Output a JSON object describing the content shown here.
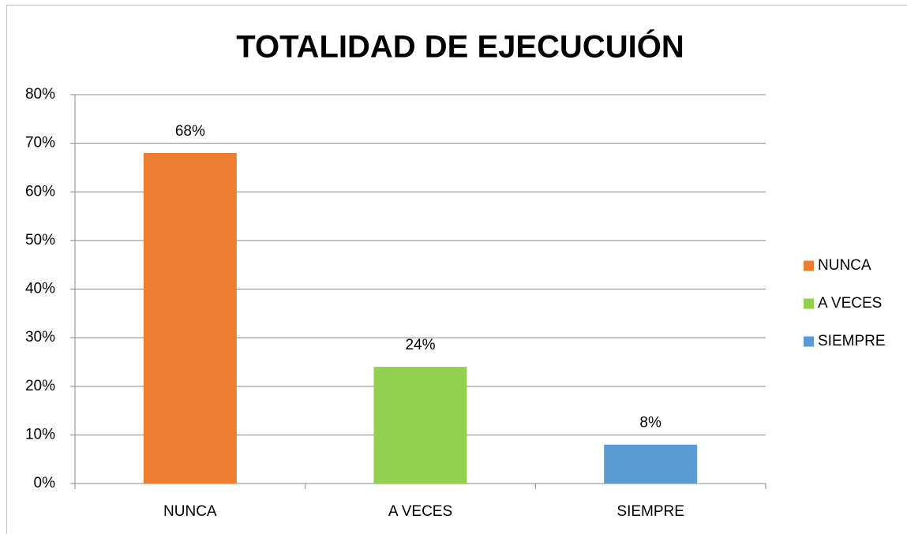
{
  "chart_data": {
    "type": "bar",
    "title": "TOTALIDAD DE EJECUCUIÓN",
    "categories": [
      "NUNCA",
      "A VECES",
      "SIEMPRE"
    ],
    "values": [
      68,
      24,
      8
    ],
    "value_labels": [
      "68%",
      "24%",
      "8%"
    ],
    "colors": [
      "#ed7d31",
      "#92d050",
      "#5b9bd5"
    ],
    "ylim": [
      0,
      80
    ],
    "yticks": [
      {
        "value": 0,
        "label": "0%"
      },
      {
        "value": 10,
        "label": "10%"
      },
      {
        "value": 20,
        "label": "20%"
      },
      {
        "value": 30,
        "label": "30%"
      },
      {
        "value": 40,
        "label": "40%"
      },
      {
        "value": 50,
        "label": "50%"
      },
      {
        "value": 60,
        "label": "60%"
      },
      {
        "value": 70,
        "label": "70%"
      },
      {
        "value": 80,
        "label": "80%"
      }
    ],
    "grid": true,
    "legend": "right"
  }
}
